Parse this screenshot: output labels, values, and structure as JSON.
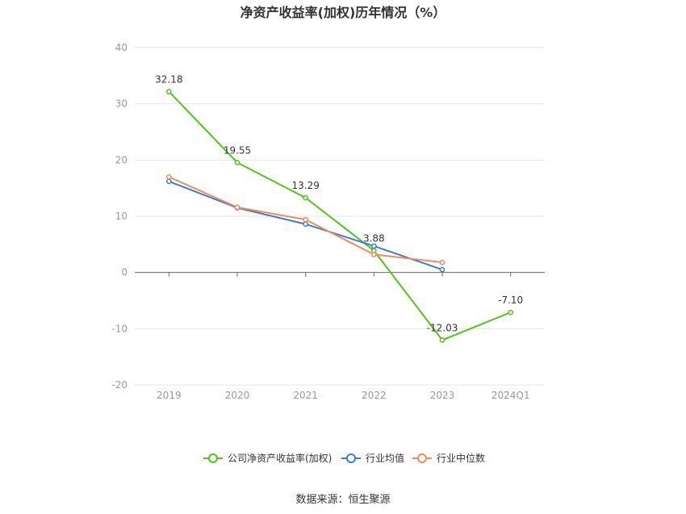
{
  "chart_data": {
    "type": "line",
    "title": "净资产收益率(加权)历年情况（%）",
    "categories": [
      "2019",
      "2020",
      "2021",
      "2022",
      "2023",
      "2024Q1"
    ],
    "ylim": [
      -20,
      40
    ],
    "yticks": [
      "40",
      "30",
      "20",
      "10",
      "0",
      "-10",
      "-20"
    ],
    "grid": true,
    "legend_position": "bottom",
    "series": [
      {
        "name": "公司净资产收益率(加权)",
        "color": "#52c41a",
        "values": [
          32.18,
          19.55,
          13.29,
          3.88,
          -12.03,
          -7.1
        ],
        "labels": [
          "32.18",
          "19.55",
          "13.29",
          "3.88",
          "-12.03",
          "-7.10"
        ]
      },
      {
        "name": "行业均值",
        "color": "#3b7ad9",
        "values": [
          16.2,
          11.5,
          8.6,
          4.7,
          0.5,
          null
        ]
      },
      {
        "name": "行业中位数",
        "color": "#f08c5a",
        "values": [
          17.0,
          11.6,
          9.4,
          3.2,
          1.8,
          null
        ]
      }
    ]
  },
  "source": "数据来源：恒生聚源"
}
